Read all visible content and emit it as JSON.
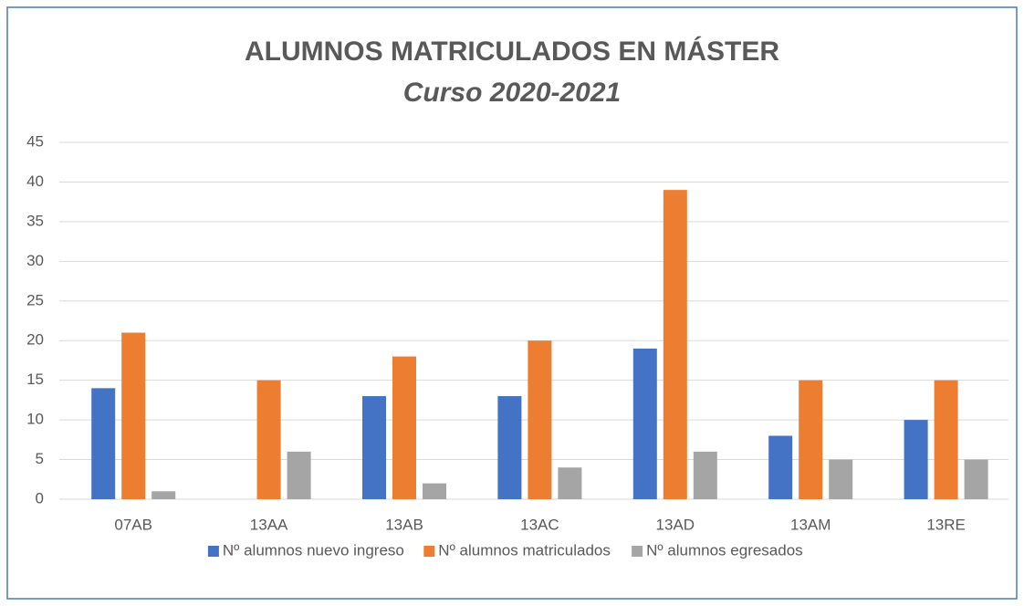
{
  "chart_data": {
    "type": "bar",
    "title": "ALUMNOS MATRICULADOS EN MÁSTER",
    "subtitle": "Curso 2020-2021",
    "categories": [
      "07AB",
      "13AA",
      "13AB",
      "13AC",
      "13AD",
      "13AM",
      "13RE"
    ],
    "series": [
      {
        "name": "Nº alumnos nuevo ingreso",
        "color": "#4472c4",
        "values": [
          14,
          0,
          13,
          13,
          19,
          8,
          10
        ]
      },
      {
        "name": "Nº alumnos matriculados",
        "color": "#ed7d31",
        "values": [
          21,
          15,
          18,
          20,
          39,
          15,
          15
        ]
      },
      {
        "name": "Nº alumnos egresados",
        "color": "#a5a5a5",
        "values": [
          1,
          6,
          2,
          4,
          6,
          5,
          5
        ]
      }
    ],
    "ylim": [
      0,
      45
    ],
    "yticks": [
      0,
      5,
      10,
      15,
      20,
      25,
      30,
      35,
      40,
      45
    ],
    "grid": true,
    "legend": "bottom"
  }
}
